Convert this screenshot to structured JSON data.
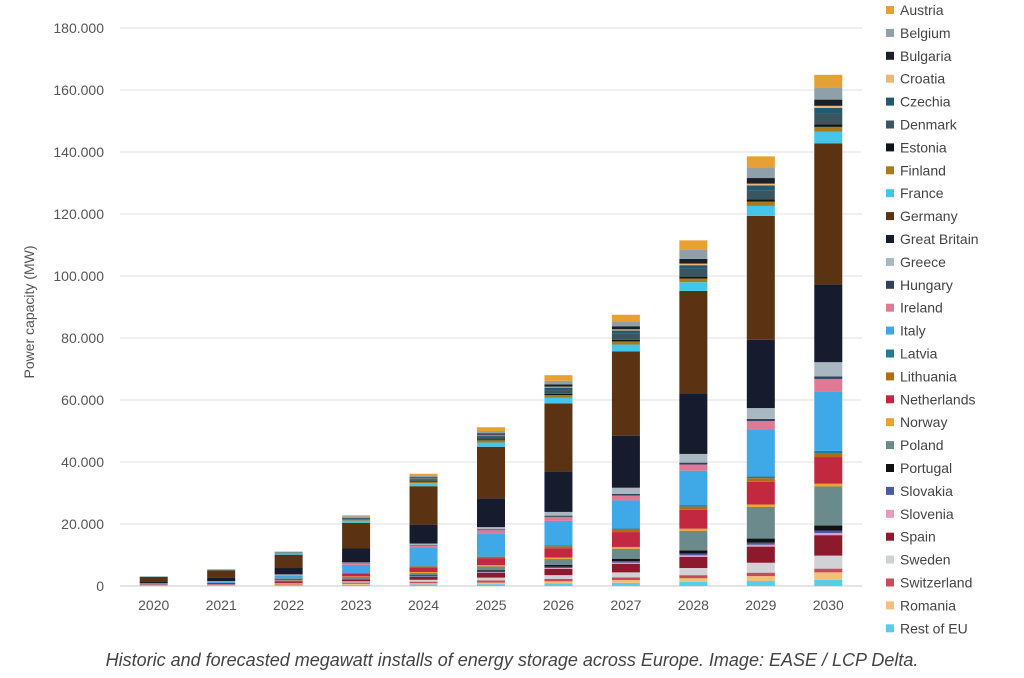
{
  "chart_data": {
    "type": "bar",
    "stacked": true,
    "ylabel": "Power capacity (MW)",
    "xlabel": "",
    "ylim": [
      0,
      180000
    ],
    "yticks": [
      "0",
      "20.000",
      "40.000",
      "60.000",
      "80.000",
      "100.000",
      "120.000",
      "140.000",
      "160.000",
      "180.000"
    ],
    "grid": true,
    "legend_position": "right",
    "categories": [
      "2020",
      "2021",
      "2022",
      "2023",
      "2024",
      "2025",
      "2026",
      "2027",
      "2028",
      "2029",
      "2030"
    ],
    "series": [
      {
        "name": "Austria",
        "color": "#e8a030",
        "values": [
          0,
          0,
          0,
          300,
          700,
          1200,
          1800,
          2200,
          3000,
          3500,
          4000
        ]
      },
      {
        "name": "Belgium",
        "color": "#8fa0a8",
        "values": [
          0,
          0,
          200,
          300,
          500,
          800,
          1200,
          1500,
          3000,
          3500,
          4000
        ]
      },
      {
        "name": "Bulgaria",
        "color": "#1b1f2a",
        "values": [
          0,
          0,
          0,
          100,
          200,
          400,
          700,
          1000,
          1500,
          1800,
          2000
        ]
      },
      {
        "name": "Croatia",
        "color": "#e9b87a",
        "values": [
          0,
          0,
          0,
          100,
          100,
          200,
          300,
          400,
          500,
          600,
          700
        ]
      },
      {
        "name": "Czechia",
        "color": "#215a6e",
        "values": [
          0,
          0,
          100,
          200,
          300,
          500,
          800,
          1000,
          1200,
          1500,
          1800
        ]
      },
      {
        "name": "Denmark",
        "color": "#3a5560",
        "values": [
          0,
          0,
          100,
          300,
          500,
          800,
          1200,
          2000,
          2500,
          3000,
          3500
        ]
      },
      {
        "name": "Estonia",
        "color": "#0e1418",
        "values": [
          0,
          0,
          0,
          100,
          200,
          300,
          400,
          500,
          600,
          700,
          800
        ]
      },
      {
        "name": "Finland",
        "color": "#a97b1d",
        "values": [
          0,
          100,
          200,
          300,
          500,
          700,
          900,
          1000,
          1200,
          1400,
          1500
        ]
      },
      {
        "name": "France",
        "color": "#43c6e9",
        "values": [
          100,
          200,
          400,
          700,
          1000,
          1400,
          1800,
          2200,
          2800,
          3200,
          3800
        ]
      },
      {
        "name": "Germany",
        "color": "#5b3312",
        "values": [
          1500,
          2500,
          4300,
          8300,
          12400,
          16600,
          21900,
          27200,
          33000,
          40000,
          45500
        ]
      },
      {
        "name": "Great Britain",
        "color": "#161b2e",
        "values": [
          600,
          1000,
          2000,
          4500,
          6100,
          9300,
          13100,
          16800,
          19600,
          22000,
          25100
        ]
      },
      {
        "name": "Greece",
        "color": "#a9b8c0",
        "values": [
          0,
          0,
          100,
          200,
          400,
          700,
          1200,
          2000,
          2800,
          3500,
          4600
        ]
      },
      {
        "name": "Hungary",
        "color": "#2e4260",
        "values": [
          0,
          0,
          100,
          100,
          200,
          300,
          400,
          500,
          600,
          700,
          800
        ]
      },
      {
        "name": "Ireland",
        "color": "#e07a94",
        "values": [
          100,
          200,
          300,
          500,
          700,
          1000,
          1300,
          1600,
          2000,
          2700,
          4200
        ]
      },
      {
        "name": "Italy",
        "color": "#3fa8e6",
        "values": [
          200,
          400,
          900,
          2500,
          6000,
          7400,
          7900,
          9000,
          11100,
          15100,
          19000
        ]
      },
      {
        "name": "Latvia",
        "color": "#237b94",
        "values": [
          0,
          0,
          0,
          100,
          100,
          200,
          300,
          400,
          500,
          600,
          700
        ]
      },
      {
        "name": "Lithuania",
        "color": "#b36b1a",
        "values": [
          0,
          0,
          100,
          200,
          300,
          400,
          600,
          800,
          1000,
          1200,
          1300
        ]
      },
      {
        "name": "Netherlands",
        "color": "#c2283f",
        "values": [
          100,
          200,
          400,
          900,
          1500,
          2300,
          3000,
          4800,
          6100,
          7300,
          8600
        ]
      },
      {
        "name": "Norway",
        "color": "#e8a530",
        "values": [
          0,
          0,
          100,
          200,
          300,
          400,
          500,
          600,
          700,
          800,
          900
        ]
      },
      {
        "name": "Poland",
        "color": "#6a8a8c",
        "values": [
          0,
          0,
          200,
          400,
          800,
          1200,
          1900,
          3200,
          6300,
          10200,
          12600
        ]
      },
      {
        "name": "Portugal",
        "color": "#111111",
        "values": [
          0,
          0,
          100,
          100,
          200,
          400,
          600,
          800,
          1000,
          1300,
          1600
        ]
      },
      {
        "name": "Slovakia",
        "color": "#4a5aa0",
        "values": [
          0,
          0,
          100,
          100,
          200,
          300,
          400,
          500,
          600,
          700,
          800
        ]
      },
      {
        "name": "Slovenia",
        "color": "#e79bc0",
        "values": [
          0,
          0,
          0,
          100,
          100,
          200,
          300,
          400,
          500,
          600,
          700
        ]
      },
      {
        "name": "Spain",
        "color": "#8c1a2c",
        "values": [
          100,
          200,
          400,
          700,
          900,
          1500,
          2000,
          2700,
          3600,
          5200,
          6600
        ]
      },
      {
        "name": "Sweden",
        "color": "#d0d2d6",
        "values": [
          100,
          100,
          200,
          400,
          600,
          900,
          1200,
          1600,
          2300,
          3200,
          4200
        ]
      },
      {
        "name": "Switzerland",
        "color": "#c94a58",
        "values": [
          100,
          200,
          300,
          400,
          500,
          700,
          800,
          900,
          1000,
          1100,
          1200
        ]
      },
      {
        "name": "Romania",
        "color": "#f2c078",
        "values": [
          100,
          100,
          200,
          300,
          400,
          500,
          700,
          900,
          1200,
          1600,
          2400
        ]
      },
      {
        "name": "Rest of EU",
        "color": "#58cde8",
        "values": [
          100,
          200,
          300,
          400,
          500,
          600,
          800,
          1000,
          1300,
          1600,
          2000
        ]
      }
    ]
  },
  "caption": "Historic and forecasted megawatt installs of energy storage across Europe. Image: EASE / LCP Delta."
}
